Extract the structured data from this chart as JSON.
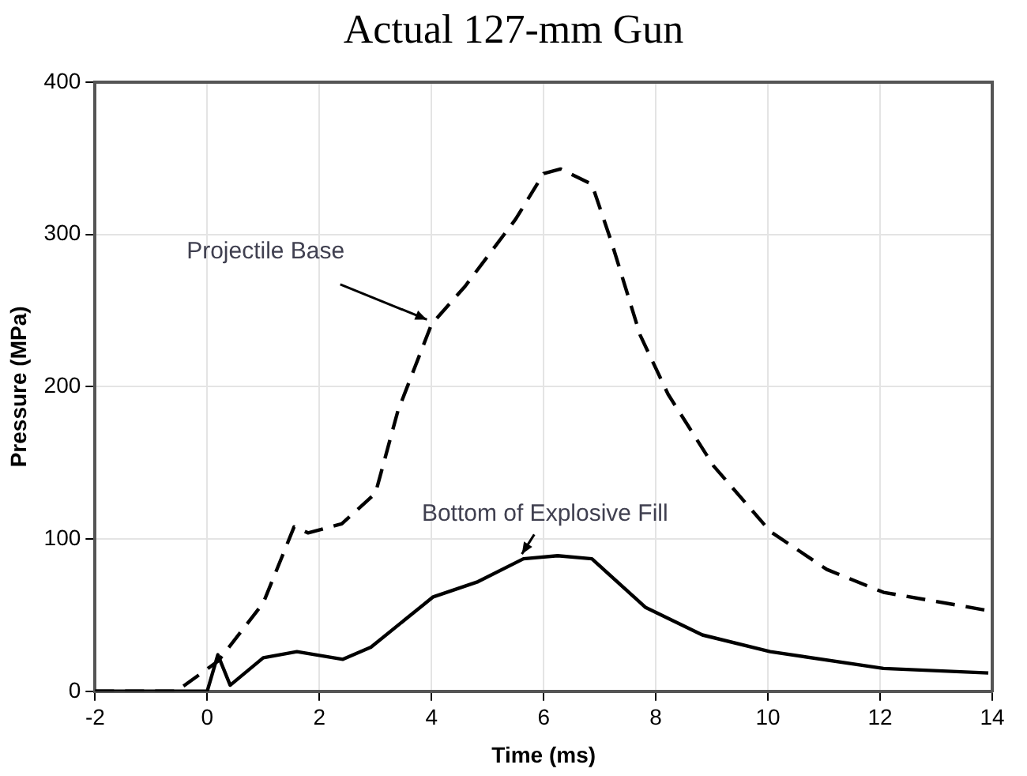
{
  "chart_data": {
    "type": "line",
    "title": "Actual 127-mm Gun",
    "xlabel": "Time (ms)",
    "ylabel": "Pressure (MPa)",
    "xlim": [
      -2,
      14
    ],
    "xticks": [
      -2,
      0,
      2,
      4,
      6,
      8,
      10,
      12,
      14
    ],
    "ylim": [
      0,
      400
    ],
    "yticks": [
      0,
      100,
      200,
      300,
      400
    ],
    "grid": true,
    "legend": false,
    "marker": "none",
    "series": [
      {
        "color": "#000000",
        "line_style": "dashed",
        "x": [
          -2,
          -0.55,
          0.2,
          1.0,
          1.55,
          1.8,
          2.4,
          3.0,
          3.4,
          4.0,
          4.6,
          5.5,
          6.0,
          6.3,
          6.86,
          7.21,
          7.72,
          8.22,
          9.03,
          10.04,
          11.05,
          12.06,
          13.93
        ],
        "values": [
          0,
          0,
          20,
          58,
          108,
          104,
          110,
          130,
          184,
          241,
          266,
          310,
          340,
          343,
          333,
          295,
          234,
          195,
          148,
          105,
          80,
          65,
          53
        ]
      },
      {
        "color": "#000000",
        "line_style": "solid",
        "x": [
          -2,
          0.0,
          0.19,
          0.41,
          1.0,
          1.6,
          2.42,
          2.92,
          4.03,
          4.83,
          5.64,
          6.25,
          6.86,
          7.82,
          8.83,
          10.04,
          12.06,
          13.93
        ],
        "values": [
          0,
          0,
          24,
          4,
          22,
          26,
          21,
          29,
          62,
          72,
          87,
          89,
          87,
          55,
          37,
          26,
          15,
          12
        ]
      }
    ],
    "annotations": [
      {
        "text": "Projectile Base",
        "x": 4.0,
        "y": 241
      },
      {
        "text": "Bottom of Explosive Fill",
        "x": 5.6,
        "y": 87
      }
    ]
  }
}
